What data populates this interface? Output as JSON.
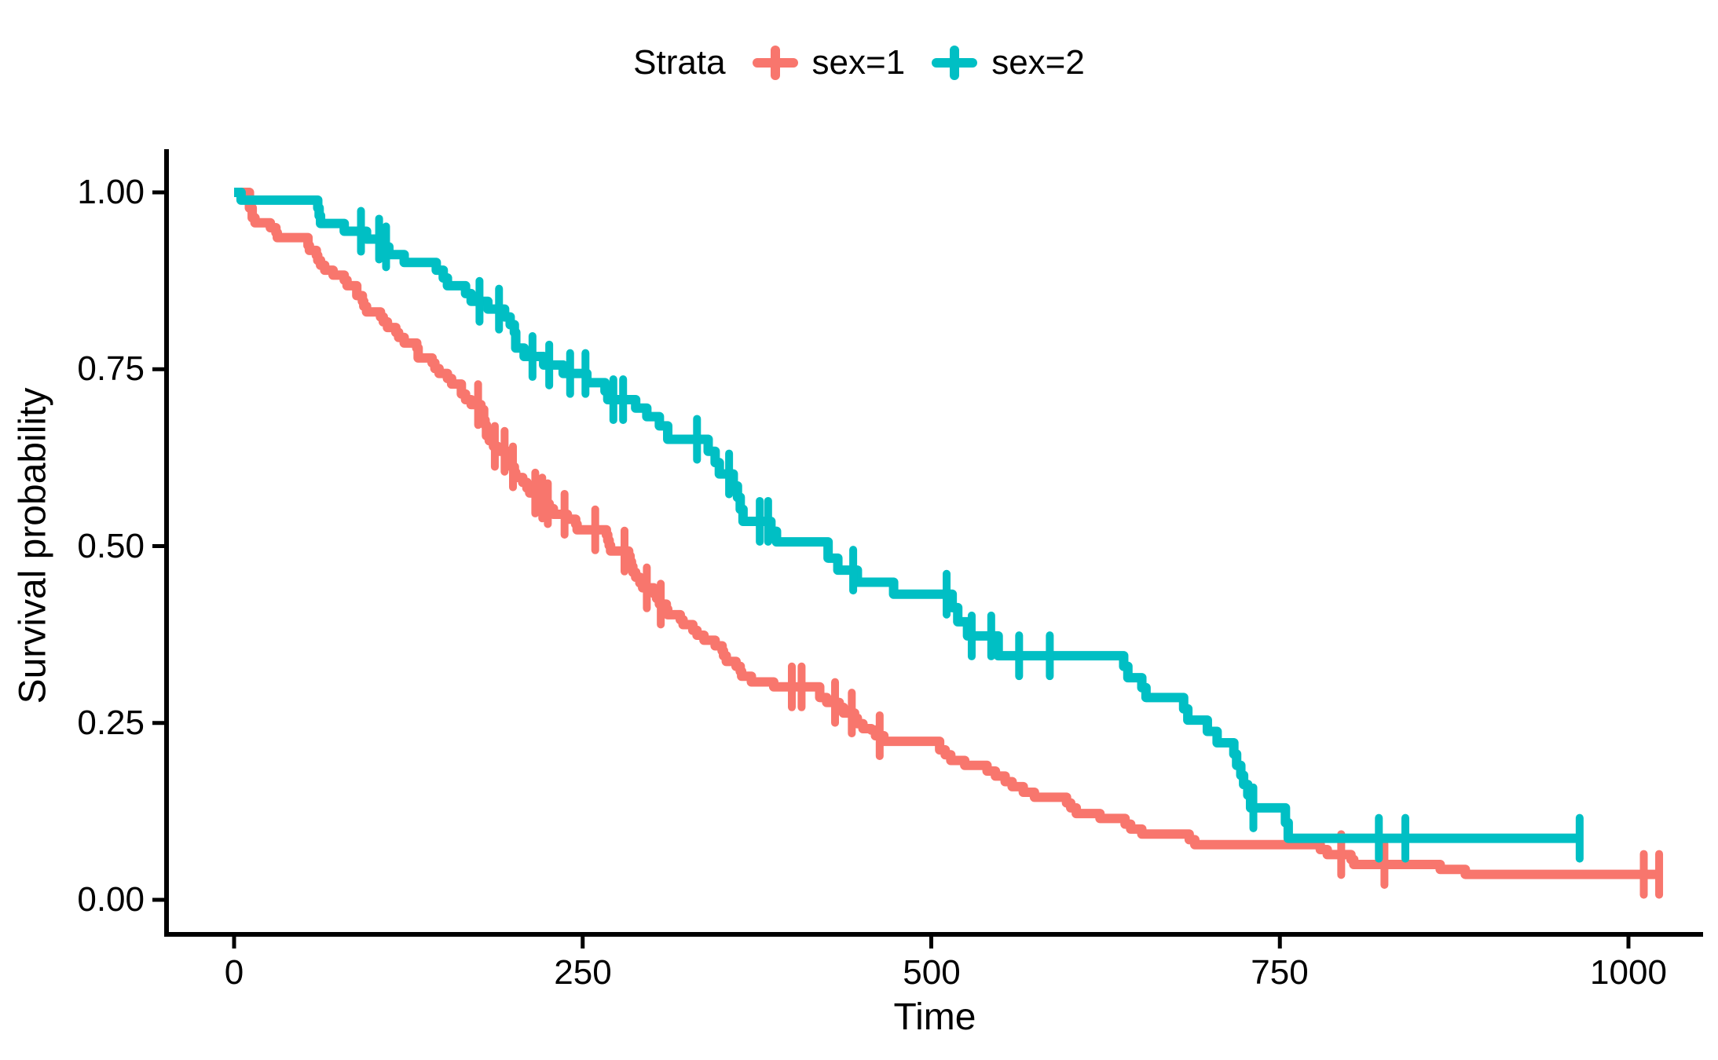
{
  "legend": {
    "title": "Strata",
    "items": [
      {
        "label": "sex=1",
        "color": "#F8766D"
      },
      {
        "label": "sex=2",
        "color": "#00BFC4"
      }
    ]
  },
  "axes": {
    "x": {
      "title": "Time",
      "tick_labels": [
        "0",
        "250",
        "500",
        "750",
        "1000"
      ]
    },
    "y": {
      "title": "Survival probability",
      "tick_labels": [
        "1.00",
        "0.75",
        "0.50",
        "0.25",
        "0.00"
      ]
    }
  },
  "chart_data": {
    "type": "line",
    "subtype": "kaplan_meier_step",
    "title": "",
    "xlabel": "Time",
    "ylabel": "Survival probability",
    "legend_title": "Strata",
    "legend_position": "top",
    "grid": false,
    "xlim": [
      0,
      1030
    ],
    "ylim": [
      0,
      1
    ],
    "x_ticks": [
      0,
      250,
      500,
      750,
      1000
    ],
    "y_ticks": [
      1.0,
      0.75,
      0.5,
      0.25,
      0.0
    ],
    "series": [
      {
        "name": "sex=1",
        "color": "#F8766D",
        "end_time": 1022,
        "steps": [
          [
            0,
            1.0
          ],
          [
            11,
            0.978
          ],
          [
            13,
            0.964
          ],
          [
            15,
            0.957
          ],
          [
            26,
            0.95
          ],
          [
            30,
            0.943
          ],
          [
            31,
            0.936
          ],
          [
            53,
            0.925
          ],
          [
            54,
            0.918
          ],
          [
            59,
            0.911
          ],
          [
            60,
            0.904
          ],
          [
            62,
            0.897
          ],
          [
            65,
            0.89
          ],
          [
            71,
            0.883
          ],
          [
            79,
            0.876
          ],
          [
            81,
            0.868
          ],
          [
            88,
            0.854
          ],
          [
            92,
            0.846
          ],
          [
            93,
            0.839
          ],
          [
            95,
            0.831
          ],
          [
            105,
            0.824
          ],
          [
            107,
            0.817
          ],
          [
            110,
            0.809
          ],
          [
            116,
            0.802
          ],
          [
            118,
            0.795
          ],
          [
            122,
            0.787
          ],
          [
            131,
            0.78
          ],
          [
            132,
            0.766
          ],
          [
            142,
            0.759
          ],
          [
            144,
            0.751
          ],
          [
            147,
            0.744
          ],
          [
            153,
            0.737
          ],
          [
            156,
            0.729
          ],
          [
            163,
            0.715
          ],
          [
            166,
            0.707
          ],
          [
            170,
            0.7
          ],
          [
            177,
            0.693
          ],
          [
            179,
            0.678
          ],
          [
            180,
            0.671
          ],
          [
            181,
            0.656
          ],
          [
            183,
            0.649
          ],
          [
            186,
            0.641
          ],
          [
            189,
            0.634
          ],
          [
            197,
            0.619
          ],
          [
            199,
            0.612
          ],
          [
            201,
            0.604
          ],
          [
            202,
            0.597
          ],
          [
            207,
            0.59
          ],
          [
            210,
            0.582
          ],
          [
            212,
            0.575
          ],
          [
            218,
            0.568
          ],
          [
            222,
            0.56
          ],
          [
            226,
            0.553
          ],
          [
            229,
            0.545
          ],
          [
            239,
            0.538
          ],
          [
            245,
            0.531
          ],
          [
            246,
            0.523
          ],
          [
            267,
            0.516
          ],
          [
            268,
            0.508
          ],
          [
            269,
            0.501
          ],
          [
            270,
            0.493
          ],
          [
            283,
            0.486
          ],
          [
            284,
            0.478
          ],
          [
            285,
            0.471
          ],
          [
            286,
            0.463
          ],
          [
            288,
            0.456
          ],
          [
            291,
            0.448
          ],
          [
            293,
            0.441
          ],
          [
            301,
            0.433
          ],
          [
            303,
            0.426
          ],
          [
            305,
            0.418
          ],
          [
            310,
            0.411
          ],
          [
            311,
            0.403
          ],
          [
            320,
            0.396
          ],
          [
            322,
            0.389
          ],
          [
            329,
            0.381
          ],
          [
            332,
            0.374
          ],
          [
            337,
            0.367
          ],
          [
            345,
            0.359
          ],
          [
            350,
            0.352
          ],
          [
            351,
            0.345
          ],
          [
            353,
            0.337
          ],
          [
            360,
            0.33
          ],
          [
            363,
            0.323
          ],
          [
            364,
            0.316
          ],
          [
            371,
            0.308
          ],
          [
            387,
            0.301
          ],
          [
            420,
            0.286
          ],
          [
            425,
            0.279
          ],
          [
            434,
            0.272
          ],
          [
            437,
            0.264
          ],
          [
            445,
            0.257
          ],
          [
            447,
            0.249
          ],
          [
            451,
            0.242
          ],
          [
            457,
            0.24
          ],
          [
            460,
            0.232
          ],
          [
            466,
            0.224
          ],
          [
            506,
            0.212
          ],
          [
            510,
            0.205
          ],
          [
            514,
            0.197
          ],
          [
            524,
            0.19
          ],
          [
            540,
            0.182
          ],
          [
            546,
            0.175
          ],
          [
            553,
            0.167
          ],
          [
            558,
            0.16
          ],
          [
            566,
            0.152
          ],
          [
            574,
            0.145
          ],
          [
            597,
            0.137
          ],
          [
            600,
            0.13
          ],
          [
            604,
            0.122
          ],
          [
            621,
            0.115
          ],
          [
            639,
            0.107
          ],
          [
            643,
            0.1
          ],
          [
            651,
            0.093
          ],
          [
            685,
            0.085
          ],
          [
            689,
            0.078
          ],
          [
            779,
            0.071
          ],
          [
            784,
            0.064
          ],
          [
            801,
            0.057
          ],
          [
            803,
            0.05
          ],
          [
            865,
            0.043
          ],
          [
            883,
            0.036
          ]
        ],
        "censor_times": [
          175,
          187,
          194,
          200,
          216,
          221,
          225,
          237,
          259,
          280,
          296,
          306,
          400,
          407,
          431,
          443,
          463,
          794,
          825,
          1011,
          1022
        ]
      },
      {
        "name": "sex=2",
        "color": "#00BFC4",
        "end_time": 965,
        "steps": [
          [
            0,
            1.0
          ],
          [
            5,
            0.989
          ],
          [
            60,
            0.978
          ],
          [
            61,
            0.967
          ],
          [
            62,
            0.956
          ],
          [
            79,
            0.945
          ],
          [
            95,
            0.934
          ],
          [
            107,
            0.923
          ],
          [
            111,
            0.912
          ],
          [
            122,
            0.901
          ],
          [
            145,
            0.89
          ],
          [
            150,
            0.879
          ],
          [
            153,
            0.868
          ],
          [
            166,
            0.857
          ],
          [
            170,
            0.846
          ],
          [
            182,
            0.835
          ],
          [
            194,
            0.824
          ],
          [
            198,
            0.813
          ],
          [
            201,
            0.802
          ],
          [
            202,
            0.78
          ],
          [
            208,
            0.768
          ],
          [
            222,
            0.756
          ],
          [
            236,
            0.744
          ],
          [
            253,
            0.731
          ],
          [
            266,
            0.719
          ],
          [
            268,
            0.707
          ],
          [
            288,
            0.695
          ],
          [
            296,
            0.683
          ],
          [
            305,
            0.67
          ],
          [
            311,
            0.651
          ],
          [
            340,
            0.634
          ],
          [
            345,
            0.618
          ],
          [
            348,
            0.602
          ],
          [
            358,
            0.585
          ],
          [
            361,
            0.569
          ],
          [
            363,
            0.552
          ],
          [
            365,
            0.535
          ],
          [
            385,
            0.521
          ],
          [
            389,
            0.506
          ],
          [
            426,
            0.483
          ],
          [
            433,
            0.466
          ],
          [
            447,
            0.449
          ],
          [
            473,
            0.432
          ],
          [
            515,
            0.413
          ],
          [
            519,
            0.393
          ],
          [
            526,
            0.373
          ],
          [
            548,
            0.345
          ],
          [
            638,
            0.33
          ],
          [
            641,
            0.314
          ],
          [
            651,
            0.3
          ],
          [
            654,
            0.286
          ],
          [
            681,
            0.27
          ],
          [
            684,
            0.254
          ],
          [
            698,
            0.238
          ],
          [
            705,
            0.222
          ],
          [
            717,
            0.206
          ],
          [
            719,
            0.19
          ],
          [
            722,
            0.176
          ],
          [
            724,
            0.163
          ],
          [
            727,
            0.148
          ],
          [
            729,
            0.13
          ],
          [
            754,
            0.109
          ],
          [
            756,
            0.087
          ]
        ],
        "censor_times": [
          91,
          104,
          109,
          176,
          190,
          214,
          226,
          241,
          252,
          272,
          279,
          332,
          355,
          377,
          383,
          444,
          511,
          529,
          543,
          563,
          585,
          731,
          821,
          840,
          965
        ]
      }
    ]
  }
}
